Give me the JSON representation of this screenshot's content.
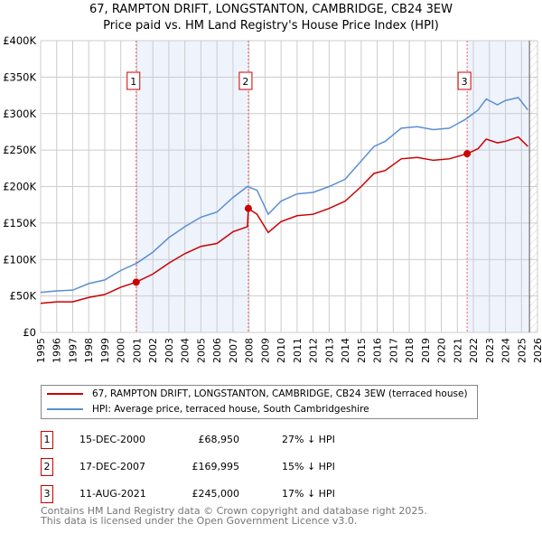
{
  "chart_data": {
    "type": "line",
    "title": "67, RAMPTON DRIFT, LONGSTANTON, CAMBRIDGE, CB24 3EW",
    "subtitle": "Price paid vs. HM Land Registry's House Price Index (HPI)",
    "xlim": [
      1995,
      2026
    ],
    "ylim": [
      0,
      400000
    ],
    "yticks": [
      {
        "v": 0,
        "label": "£0"
      },
      {
        "v": 50000,
        "label": "£50K"
      },
      {
        "v": 100000,
        "label": "£100K"
      },
      {
        "v": 150000,
        "label": "£150K"
      },
      {
        "v": 200000,
        "label": "£200K"
      },
      {
        "v": 250000,
        "label": "£250K"
      },
      {
        "v": 300000,
        "label": "£300K"
      },
      {
        "v": 350000,
        "label": "£350K"
      },
      {
        "v": 400000,
        "label": "£400K"
      }
    ],
    "xticks": [
      1995,
      1996,
      1997,
      1998,
      1999,
      2000,
      2001,
      2002,
      2003,
      2004,
      2005,
      2006,
      2007,
      2008,
      2009,
      2010,
      2011,
      2012,
      2013,
      2014,
      2015,
      2016,
      2017,
      2018,
      2019,
      2020,
      2021,
      2022,
      2023,
      2024,
      2025,
      2026
    ],
    "series": [
      {
        "name": "67, RAMPTON DRIFT, LONGSTANTON, CAMBRIDGE, CB24 3EW (terraced house)",
        "color": "#cc0000",
        "x": [
          1995,
          1996,
          1997,
          1998,
          1999,
          2000,
          2000.96,
          2002,
          2003,
          2004,
          2005,
          2006,
          2007,
          2007.9,
          2007.96,
          2008.5,
          2009.2,
          2010,
          2011,
          2012,
          2013,
          2014,
          2015,
          2015.8,
          2016.5,
          2017.5,
          2018.5,
          2019.5,
          2020.5,
          2021.61,
          2022.3,
          2022.8,
          2023.5,
          2024,
          2024.8,
          2025.4
        ],
        "y": [
          40000,
          42000,
          42000,
          48000,
          52000,
          62000,
          68950,
          80000,
          95000,
          108000,
          118000,
          122000,
          138000,
          145000,
          169995,
          162000,
          137000,
          152000,
          160000,
          162000,
          170000,
          180000,
          200000,
          218000,
          222000,
          238000,
          240000,
          236000,
          238000,
          245000,
          252000,
          265000,
          260000,
          262000,
          268000,
          255000
        ]
      },
      {
        "name": "HPI: Average price, terraced house, South Cambridgeshire",
        "color": "#5b8fd0",
        "x": [
          1995,
          1996,
          1997,
          1998,
          1999,
          2000,
          2001,
          2002,
          2003,
          2004,
          2005,
          2006,
          2007,
          2007.9,
          2008.5,
          2009.2,
          2010,
          2011,
          2012,
          2013,
          2014,
          2015,
          2015.8,
          2016.5,
          2017.5,
          2018.5,
          2019.5,
          2020.5,
          2021.5,
          2022.3,
          2022.8,
          2023.5,
          2024,
          2024.8,
          2025.4
        ],
        "y": [
          55000,
          57000,
          58000,
          67000,
          72000,
          85000,
          95000,
          110000,
          130000,
          145000,
          158000,
          165000,
          185000,
          200000,
          195000,
          162000,
          180000,
          190000,
          192000,
          200000,
          210000,
          235000,
          255000,
          262000,
          280000,
          282000,
          278000,
          280000,
          292000,
          305000,
          320000,
          312000,
          318000,
          322000,
          305000
        ]
      }
    ],
    "sales": [
      {
        "id": "1",
        "date": "15-DEC-2000",
        "x": 2000.96,
        "price": "£68,950",
        "value": 68950,
        "hpi": "27% ↓ HPI"
      },
      {
        "id": "2",
        "date": "17-DEC-2007",
        "x": 2007.96,
        "price": "£169,995",
        "value": 169995,
        "hpi": "15% ↓ HPI"
      },
      {
        "id": "3",
        "date": "11-AUG-2021",
        "x": 2021.61,
        "price": "£245,000",
        "value": 245000,
        "hpi": "17% ↓ HPI"
      }
    ],
    "data_end": 2025.5
  },
  "footer": {
    "line1": "Contains HM Land Registry data © Crown copyright and database right 2025.",
    "line2": "This data is licensed under the Open Government Licence v3.0."
  }
}
